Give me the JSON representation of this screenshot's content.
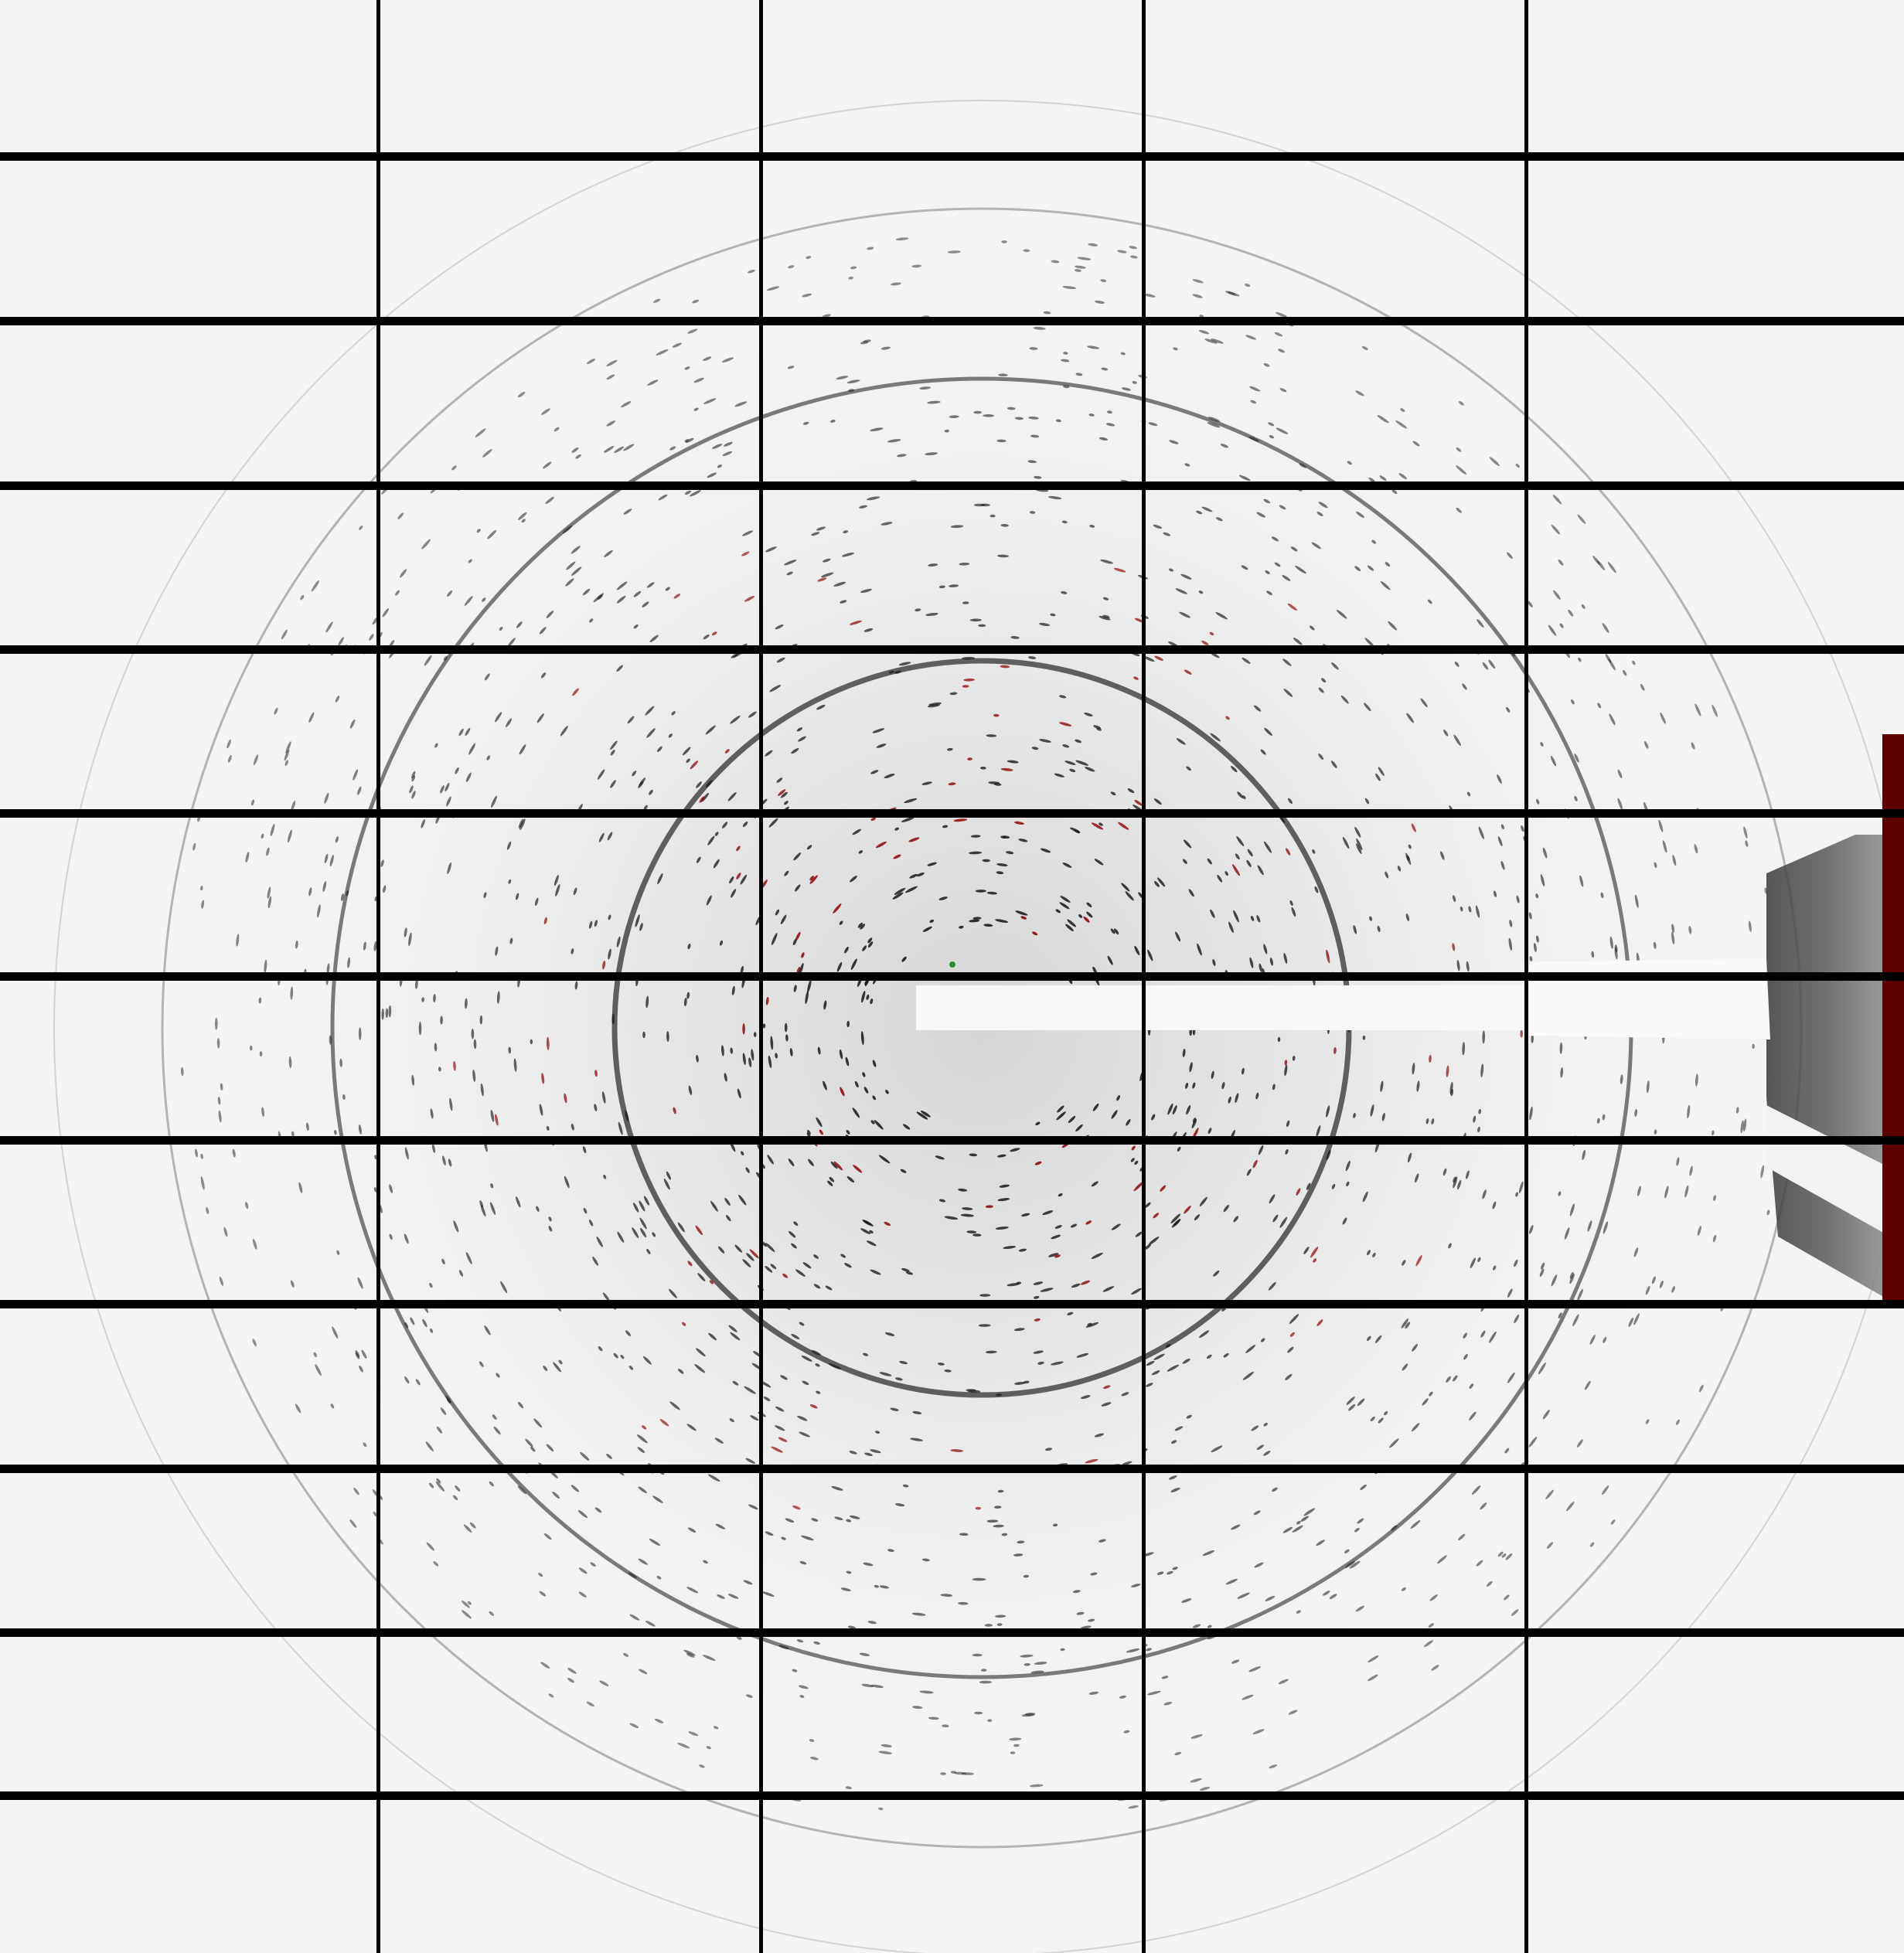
{
  "viewer": {
    "background_color": "#f4f4f4",
    "spot_color": "#1a1a1a",
    "overload_color": "#8b0000",
    "gap_color": "#000000",
    "beam_center_marker_color": "#2e8b2e",
    "rings": [
      {
        "label": "ring-inner",
        "strength": 0.9
      },
      {
        "label": "ring-middle",
        "strength": 0.75
      },
      {
        "label": "ring-outer",
        "strength": 0.4
      },
      {
        "label": "ring-faint-outermost",
        "strength": 0.2
      }
    ]
  }
}
